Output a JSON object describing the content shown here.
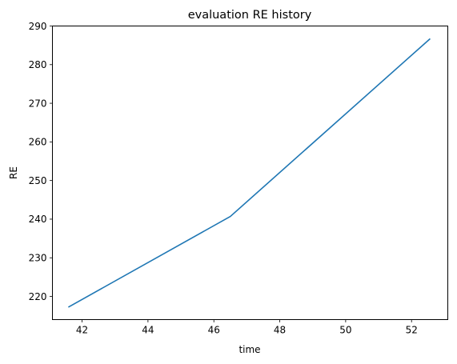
{
  "chart_data": {
    "type": "line",
    "title": "evaluation RE history",
    "xlabel": "time",
    "ylabel": "RE",
    "xlim": [
      41.1,
      53.1
    ],
    "ylim": [
      214,
      290
    ],
    "xticks": [
      42,
      44,
      46,
      48,
      50,
      52
    ],
    "yticks": [
      220,
      230,
      240,
      250,
      260,
      270,
      280,
      290
    ],
    "grid": false,
    "series": [
      {
        "color": "#1f77b4",
        "x": [
          41.6,
          46.5,
          52.55
        ],
        "y": [
          217.3,
          240.7,
          286.6
        ]
      }
    ]
  }
}
